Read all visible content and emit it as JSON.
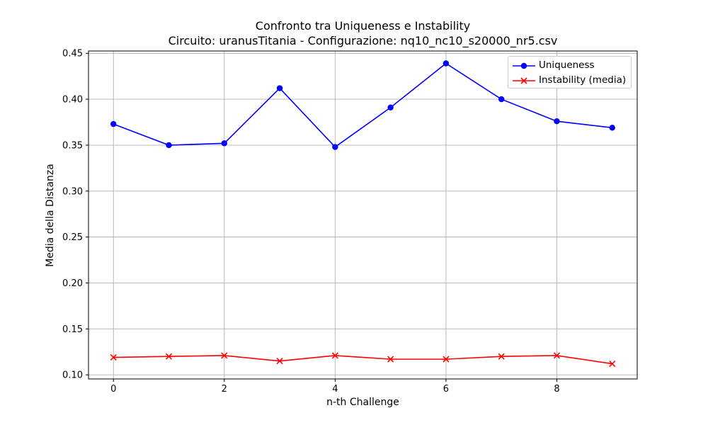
{
  "chart_data": {
    "type": "line",
    "title": "Confronto tra Uniqueness e Instability",
    "subtitle": "Circuito: uranusTitania - Configurazione: nq10_nc10_s20000_nr5.csv",
    "xlabel": "n-th Challenge",
    "ylabel": "Media della Distanza",
    "x": [
      0,
      1,
      2,
      3,
      4,
      5,
      6,
      7,
      8,
      9
    ],
    "xlim": [
      -0.45,
      9.45
    ],
    "ylim": [
      0.0955,
      0.4525
    ],
    "x_ticks": [
      0,
      2,
      4,
      6,
      8
    ],
    "y_ticks": [
      0.1,
      0.15,
      0.2,
      0.25,
      0.3,
      0.35,
      0.4,
      0.45
    ],
    "x_tick_labels": [
      "0",
      "2",
      "4",
      "6",
      "8"
    ],
    "y_tick_labels": [
      "0.10",
      "0.15",
      "0.20",
      "0.25",
      "0.30",
      "0.35",
      "0.40",
      "0.45"
    ],
    "grid": true,
    "legend_position": "top-right",
    "series": [
      {
        "name": "Uniqueness",
        "color": "#0000ff",
        "marker": "circle",
        "values": [
          0.373,
          0.35,
          0.352,
          0.412,
          0.348,
          0.391,
          0.439,
          0.4,
          0.376,
          0.369
        ]
      },
      {
        "name": "Instability (media)",
        "color": "#ff0000",
        "marker": "x",
        "values": [
          0.119,
          0.12,
          0.121,
          0.115,
          0.121,
          0.117,
          0.117,
          0.12,
          0.121,
          0.112
        ]
      }
    ]
  }
}
